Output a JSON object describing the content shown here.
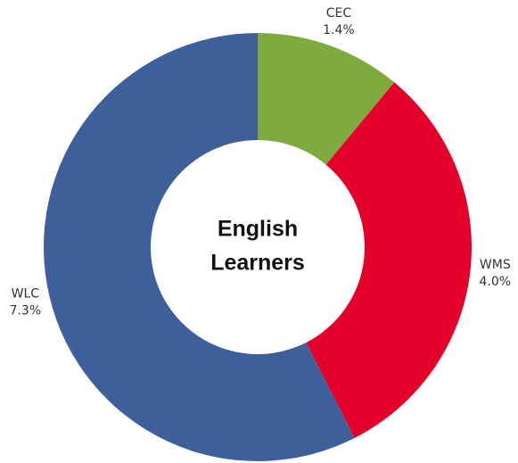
{
  "chart_data": {
    "type": "donut",
    "center_label": [
      "English",
      "Learners"
    ],
    "categories": [
      "CEC",
      "WMS",
      "WLC"
    ],
    "values": [
      1.4,
      4.0,
      7.3
    ],
    "value_labels": [
      "1.4%",
      "4.0%",
      "7.3%"
    ],
    "colors": [
      "#7faa3f",
      "#e4002b",
      "#3f5f9b"
    ]
  }
}
